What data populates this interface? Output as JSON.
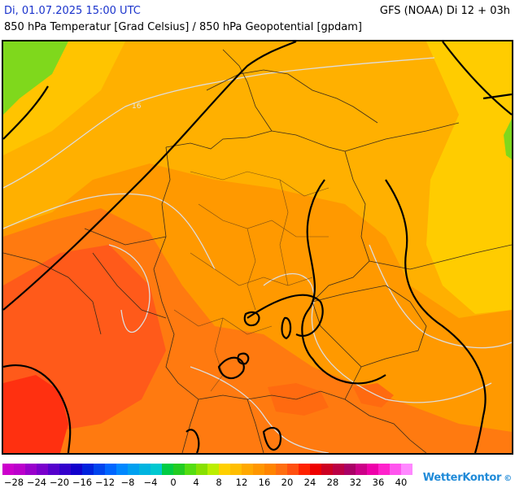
{
  "header": {
    "date": "Di, 01.07.2025 15:00 UTC",
    "model": "GFS (NOAA) Di 12 + 03h",
    "title": "850 hPa Temperatur [Grad Celsius] / 850 hPa Geopotential [gpdam]"
  },
  "map": {
    "isotherm_labels": [
      {
        "text": "16"
      }
    ],
    "fill_colors": {
      "green": "#7fd81c",
      "yellow": "#ffcc00",
      "light_orange": "#ffb000",
      "orange": "#ff9900",
      "dark_orange": "#ff7a10",
      "red_orange": "#ff5a1a",
      "red": "#ff3010"
    }
  },
  "colorbar": {
    "colors": [
      "#cc00cc",
      "#bb00cc",
      "#9900cc",
      "#7a00cc",
      "#5500cc",
      "#3300cc",
      "#1100cc",
      "#0022dd",
      "#0044ee",
      "#0066ff",
      "#0088ff",
      "#00a0f0",
      "#00b4e0",
      "#00c8d0",
      "#00cc44",
      "#22cc22",
      "#55dd11",
      "#88e000",
      "#bbee00",
      "#ffd000",
      "#ffbe00",
      "#ffa800",
      "#ff9600",
      "#ff8400",
      "#ff6e10",
      "#ff5010",
      "#ff2200",
      "#ee0000",
      "#cc0022",
      "#bb0044",
      "#aa0066",
      "#cc0088",
      "#ee00aa",
      "#ff22cc",
      "#ff55ee",
      "#ff88ff"
    ],
    "labels": [
      "−28",
      "−24",
      "−20",
      "−16",
      "−12",
      "−8",
      "−4",
      "0",
      "4",
      "8",
      "12",
      "16",
      "20",
      "24",
      "28",
      "32",
      "36",
      "40"
    ]
  },
  "logo": {
    "text": "WetterKontor"
  }
}
